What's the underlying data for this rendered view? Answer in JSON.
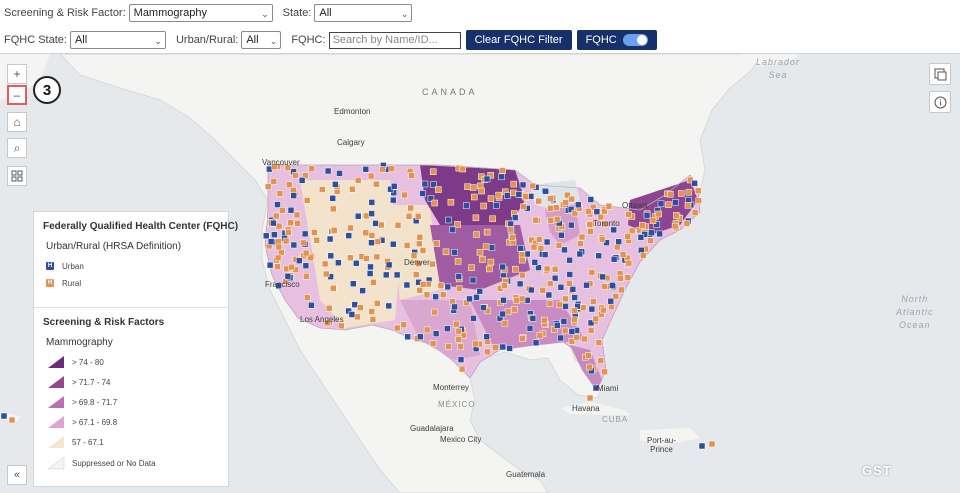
{
  "filters": {
    "screening_label": "Screening & Risk Factor:",
    "screening_value": "Mammography",
    "state_label": "State:",
    "state_value": "All",
    "fqhc_state_label": "FQHC State:",
    "fqhc_state_value": "All",
    "urban_rural_label": "Urban/Rural:",
    "urban_rural_value": "All",
    "fqhc_label": "FQHC:",
    "fqhc_placeholder": "Search by Name/ID...",
    "clear_button": "Clear FQHC Filter",
    "fqhc_toggle_label": "FQHC",
    "fqhc_toggle_on": true
  },
  "controls": {
    "zoom_in": "+",
    "zoom_out": "–",
    "home": "⌂",
    "search": "⌕",
    "collapse": "«",
    "step_badge": "3"
  },
  "map_labels": {
    "canada": "CANADA",
    "edmonton": "Edmonton",
    "calgary": "Calgary",
    "vancouver": "Vancouver",
    "ottawa": "Ottawa",
    "toronto": "Toronto",
    "denver": "Denver",
    "francisco": "Francisco",
    "los_angeles": "Los Angeles",
    "monterrey": "Monterrey",
    "mexico": "MÉXICO",
    "guadalajara": "Guadalajara",
    "mexico_city": "Mexico City",
    "havana": "Havana",
    "cuba": "CUBA",
    "miami": "Miami",
    "port_au_prince": "Port-au-\nPrince",
    "guatemala": "Guatemala",
    "labrador_sea": "Labrador\nSea",
    "north_atlantic": "North\nAtlantic\nOcean"
  },
  "legend": {
    "fqhc_title": "Federally Qualified Health Center (FQHC)",
    "urban_rural_sub": "Urban/Rural (HRSA Definition)",
    "urban_label": "Urban",
    "rural_label": "Rural",
    "risk_title": "Screening & Risk Factors",
    "risk_sub": "Mammography",
    "classes": [
      {
        "label": "> 74 - 80",
        "color": "#6b2a7a"
      },
      {
        "label": "> 71.7 - 74",
        "color": "#96478f"
      },
      {
        "label": "> 69.8 - 71.7",
        "color": "#bb6fb1"
      },
      {
        "label": "> 67.1 - 69.8",
        "color": "#dca6d0"
      },
      {
        "label": "57 - 67.1",
        "color": "#f5e6cf"
      },
      {
        "label": "Suppressed or No Data",
        "color": "#f3f3f3"
      }
    ],
    "urban_color": "#2d4f9e",
    "rural_color": "#e2934f"
  },
  "footer": {
    "logo": "GST"
  }
}
